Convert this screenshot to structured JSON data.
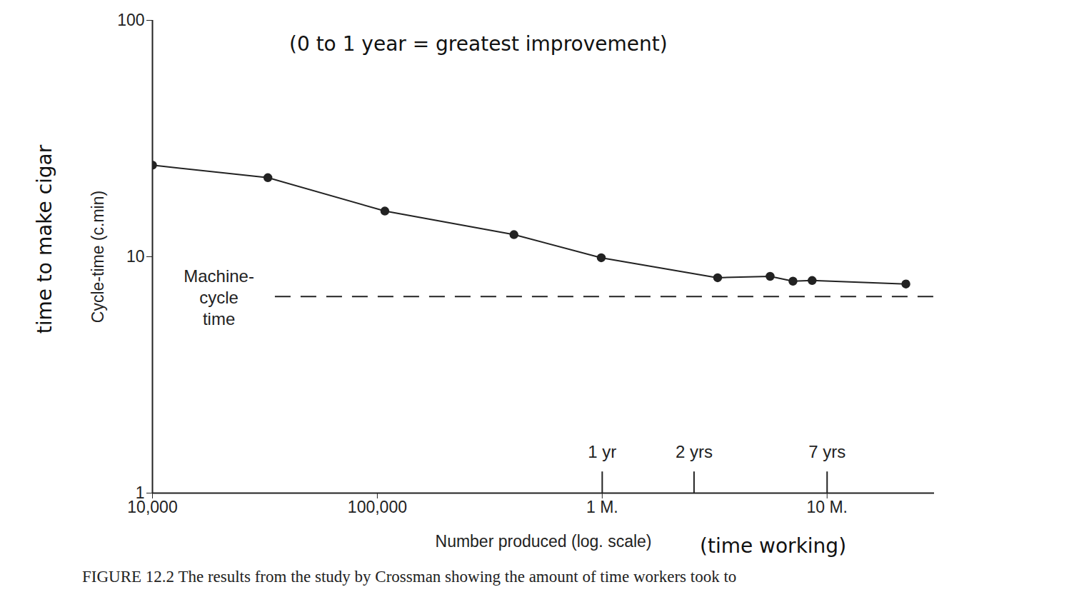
{
  "chart_data": {
    "type": "line",
    "x_label": "Number produced (log. scale)",
    "y_label": "Cycle-time (c.min)",
    "caption": "FIGURE 12.2 The results from the study by Crossman showing the amount of time workers took to",
    "log": true,
    "grid": false,
    "color": "#222222",
    "marker": "circle",
    "line_style": "solid",
    "x": [
      10000,
      32600,
      108000,
      405000,
      990000,
      3260000,
      5580000,
      7050000,
      8580000,
      22400000
    ],
    "values": [
      24.4,
      21.6,
      15.6,
      12.4,
      9.9,
      8.15,
      8.26,
      7.88,
      7.93,
      7.67
    ],
    "xlim": [
      10000,
      30000000
    ],
    "ylim": [
      1,
      100
    ],
    "xticks": [
      {
        "value": 10000,
        "label": "10,000"
      },
      {
        "value": 100000,
        "label": "100,000"
      },
      {
        "value": 1000000,
        "label": "1 M."
      },
      {
        "value": 10000000,
        "label": "10 M."
      }
    ],
    "yticks": [
      1,
      10,
      100
    ],
    "reference_line": {
      "value": 6.78,
      "label": "Machine-\ncycle\ntime",
      "line_style": "dashed"
    },
    "x_markers": [
      {
        "value": 1000000,
        "label": "1 yr"
      },
      {
        "value": 2560000,
        "label": "2 yrs"
      },
      {
        "value": 10000000,
        "label": "7 yrs"
      }
    ],
    "annotations": {
      "top": "(0 to 1 year = greatest improvement)",
      "y_axis": "time to make cigar",
      "x_axis": "(time working)"
    }
  }
}
